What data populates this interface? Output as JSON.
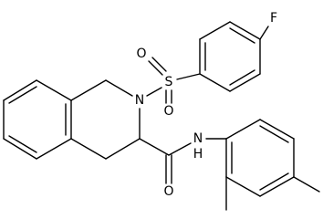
{
  "labels": [
    "F",
    "O",
    "S",
    "O",
    "N",
    "O",
    "N",
    "H"
  ]
}
